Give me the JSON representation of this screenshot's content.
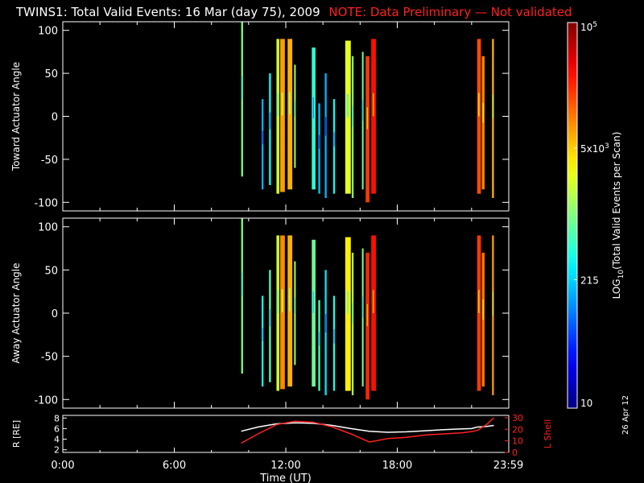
{
  "title": {
    "main": "TWINS1: Total Valid Events: 16 Mar (day  75), 2009",
    "note": "NOTE: Data Preliminary — Not validated",
    "note_color": "#ff2020"
  },
  "chart_data": [
    {
      "type": "heatmap",
      "name": "toward",
      "ylabel": "Toward Actuator Angle",
      "ylim": [
        -110,
        110
      ],
      "yticks": [
        100,
        50,
        0,
        -50,
        -100
      ],
      "xlim": [
        0,
        24
      ],
      "stripes": [
        {
          "t0": 9.6,
          "t1": 9.7,
          "a0": -70,
          "a1": 110,
          "v": 0.5
        },
        {
          "t0": 10.7,
          "t1": 10.8,
          "a0": -85,
          "a1": 20,
          "v": 0.3
        },
        {
          "t0": 11.1,
          "t1": 11.2,
          "a0": -80,
          "a1": 50,
          "v": 0.38
        },
        {
          "t0": 11.5,
          "t1": 11.65,
          "a0": -90,
          "a1": 90,
          "v": 0.58
        },
        {
          "t0": 11.7,
          "t1": 11.95,
          "a0": -88,
          "a1": 90,
          "v": 0.72
        },
        {
          "t0": 12.1,
          "t1": 12.35,
          "a0": -85,
          "a1": 90,
          "v": 0.7
        },
        {
          "t0": 12.45,
          "t1": 12.5,
          "a0": -60,
          "a1": 60,
          "v": 0.55
        },
        {
          "t0": 13.4,
          "t1": 13.6,
          "a0": -85,
          "a1": 80,
          "v": 0.42
        },
        {
          "t0": 13.75,
          "t1": 13.85,
          "a0": -90,
          "a1": 15,
          "v": 0.32
        },
        {
          "t0": 14.1,
          "t1": 14.2,
          "a0": -95,
          "a1": 50,
          "v": 0.3
        },
        {
          "t0": 14.55,
          "t1": 14.65,
          "a0": -90,
          "a1": 20,
          "v": 0.38
        },
        {
          "t0": 15.2,
          "t1": 15.5,
          "a0": -90,
          "a1": 88,
          "v": 0.6
        },
        {
          "t0": 15.55,
          "t1": 15.65,
          "a0": -95,
          "a1": 70,
          "v": 0.5
        },
        {
          "t0": 16.1,
          "t1": 16.15,
          "a0": -85,
          "a1": 75,
          "v": 0.48
        },
        {
          "t0": 16.3,
          "t1": 16.5,
          "a0": -100,
          "a1": 70,
          "v": 0.82
        },
        {
          "t0": 16.6,
          "t1": 16.85,
          "a0": -90,
          "a1": 90,
          "v": 0.86
        },
        {
          "t0": 22.3,
          "t1": 22.5,
          "a0": -90,
          "a1": 90,
          "v": 0.8
        },
        {
          "t0": 22.55,
          "t1": 22.7,
          "a0": -85,
          "a1": 70,
          "v": 0.75
        },
        {
          "t0": 23.1,
          "t1": 23.2,
          "a0": -95,
          "a1": 90,
          "v": 0.7
        }
      ]
    },
    {
      "type": "heatmap",
      "name": "away",
      "ylabel": "Away Actuator Angle",
      "ylim": [
        -110,
        110
      ],
      "yticks": [
        100,
        50,
        0,
        -50,
        -100
      ],
      "xlim": [
        0,
        24
      ],
      "stripes": [
        {
          "t0": 9.6,
          "t1": 9.7,
          "a0": -70,
          "a1": 110,
          "v": 0.5
        },
        {
          "t0": 10.7,
          "t1": 10.8,
          "a0": -85,
          "a1": 20,
          "v": 0.4
        },
        {
          "t0": 11.1,
          "t1": 11.2,
          "a0": -80,
          "a1": 50,
          "v": 0.45
        },
        {
          "t0": 11.5,
          "t1": 11.65,
          "a0": -90,
          "a1": 90,
          "v": 0.58
        },
        {
          "t0": 11.7,
          "t1": 11.95,
          "a0": -88,
          "a1": 90,
          "v": 0.74
        },
        {
          "t0": 12.1,
          "t1": 12.35,
          "a0": -85,
          "a1": 90,
          "v": 0.7
        },
        {
          "t0": 12.45,
          "t1": 12.5,
          "a0": -60,
          "a1": 60,
          "v": 0.55
        },
        {
          "t0": 13.4,
          "t1": 13.6,
          "a0": -85,
          "a1": 85,
          "v": 0.48
        },
        {
          "t0": 13.75,
          "t1": 13.85,
          "a0": -90,
          "a1": 15,
          "v": 0.45
        },
        {
          "t0": 14.1,
          "t1": 14.2,
          "a0": -95,
          "a1": 50,
          "v": 0.35
        },
        {
          "t0": 14.55,
          "t1": 14.65,
          "a0": -90,
          "a1": 20,
          "v": 0.4
        },
        {
          "t0": 15.2,
          "t1": 15.5,
          "a0": -90,
          "a1": 88,
          "v": 0.64
        },
        {
          "t0": 15.55,
          "t1": 15.65,
          "a0": -95,
          "a1": 70,
          "v": 0.55
        },
        {
          "t0": 16.1,
          "t1": 16.15,
          "a0": -85,
          "a1": 75,
          "v": 0.5
        },
        {
          "t0": 16.3,
          "t1": 16.5,
          "a0": -100,
          "a1": 70,
          "v": 0.84
        },
        {
          "t0": 16.6,
          "t1": 16.85,
          "a0": -90,
          "a1": 90,
          "v": 0.86
        },
        {
          "t0": 22.3,
          "t1": 22.5,
          "a0": -90,
          "a1": 90,
          "v": 0.82
        },
        {
          "t0": 22.55,
          "t1": 22.7,
          "a0": -85,
          "a1": 70,
          "v": 0.76
        },
        {
          "t0": 23.1,
          "t1": 23.2,
          "a0": -95,
          "a1": 90,
          "v": 0.72
        }
      ]
    },
    {
      "type": "line",
      "name": "orbit",
      "ylabel": "R [RE]",
      "ylabel_right": "L Shell",
      "xlabel": "Time (UT)",
      "xlim": [
        0,
        24
      ],
      "ylim": [
        1.5,
        8.5
      ],
      "yticks": [
        2,
        4,
        6,
        8
      ],
      "ylim_right": [
        0,
        32
      ],
      "yticks_right": [
        0,
        10,
        20,
        30
      ],
      "xticks": [
        "0:00",
        "6:00",
        "12:00",
        "18:00",
        "23:59"
      ],
      "xtick_values": [
        0,
        6,
        12,
        18,
        23.98
      ],
      "series": [
        {
          "axis": "left",
          "color": "#ffffff",
          "x": [
            9.6,
            10.5,
            11.5,
            12.5,
            13.5,
            14.5,
            15.5,
            16.5,
            17.5,
            18.5,
            19.5,
            20.5,
            21.5,
            22.0,
            22.3,
            22.8,
            23.2
          ],
          "y": [
            5.5,
            6.3,
            6.9,
            7.1,
            7.0,
            6.6,
            6.0,
            5.5,
            5.3,
            5.4,
            5.6,
            5.8,
            5.95,
            6.0,
            6.3,
            6.4,
            6.6
          ]
        },
        {
          "axis": "right",
          "color": "#ff2020",
          "x": [
            9.6,
            10.5,
            11.5,
            12.5,
            13.5,
            14.5,
            15.5,
            16.5,
            17.5,
            18.5,
            19.5,
            20.5,
            21.5,
            22.0,
            22.3,
            22.8,
            23.2
          ],
          "y": [
            8,
            16,
            24,
            27,
            26,
            22,
            16,
            9,
            12,
            13,
            15,
            16,
            17,
            18,
            19,
            24,
            30
          ]
        }
      ]
    }
  ],
  "colorbar": {
    "label": "LOG10(Total Valid Events per Scan)",
    "ticks": [
      "10",
      "215",
      "5x10^3",
      "10^5"
    ],
    "tick_values": [
      1.0,
      2.332,
      3.699,
      5.0
    ],
    "range": [
      1.0,
      5.0
    ]
  },
  "stamp": "26 Apr 12"
}
